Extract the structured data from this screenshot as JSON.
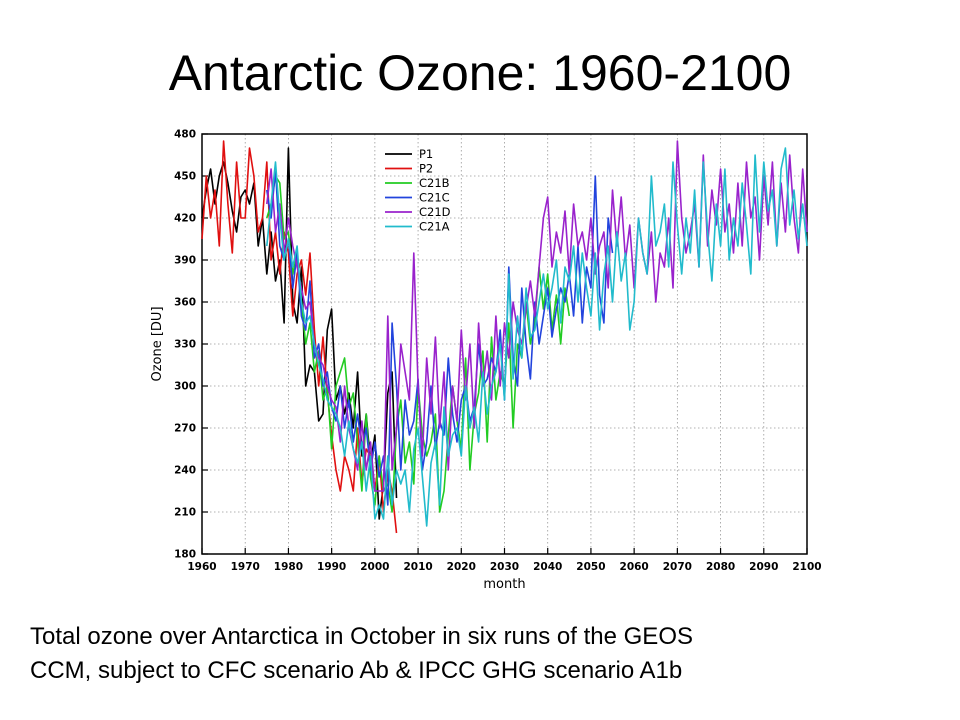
{
  "slide": {
    "title": "Antarctic Ozone: 1960-2100",
    "caption_line1": "Total ozone over Antarctica in October in six runs of the GEOS",
    "caption_line2": "CCM, subject to CFC scenario Ab & IPCC GHG scenario A1b"
  },
  "chart_data": {
    "type": "line",
    "title": "",
    "xlabel": "month",
    "ylabel": "Ozone [DU]",
    "xlim": [
      1960,
      2100
    ],
    "ylim": [
      180,
      480
    ],
    "xticks": [
      1960,
      1970,
      1980,
      1990,
      2000,
      2010,
      2020,
      2030,
      2040,
      2050,
      2060,
      2070,
      2080,
      2090,
      2100
    ],
    "yticks": [
      180,
      210,
      240,
      270,
      300,
      330,
      360,
      390,
      420,
      450,
      480
    ],
    "grid": true,
    "legend_position": "top-center",
    "series": [
      {
        "name": "P1",
        "color": "#000000",
        "x": [
          1960,
          1961,
          1962,
          1963,
          1964,
          1965,
          1966,
          1967,
          1968,
          1969,
          1970,
          1971,
          1972,
          1973,
          1974,
          1975,
          1976,
          1977,
          1978,
          1979,
          1980,
          1981,
          1982,
          1983,
          1984,
          1985,
          1986,
          1987,
          1988,
          1989,
          1990,
          1991,
          1992,
          1993,
          1994,
          1995,
          1996,
          1997,
          1998,
          1999,
          2000,
          2001,
          2002,
          2003,
          2004,
          2005
        ],
        "y": [
          420,
          440,
          455,
          430,
          450,
          460,
          445,
          425,
          410,
          435,
          440,
          430,
          445,
          400,
          420,
          380,
          410,
          375,
          390,
          345,
          470,
          360,
          345,
          385,
          300,
          315,
          310,
          275,
          280,
          340,
          355,
          290,
          300,
          280,
          295,
          270,
          310,
          250,
          280,
          245,
          265,
          205,
          230,
          295,
          310,
          220
        ]
      },
      {
        "name": "P2",
        "color": "#e01010",
        "x": [
          1960,
          1961,
          1962,
          1963,
          1964,
          1965,
          1966,
          1967,
          1968,
          1969,
          1970,
          1971,
          1972,
          1973,
          1974,
          1975,
          1976,
          1977,
          1978,
          1979,
          1980,
          1981,
          1982,
          1983,
          1984,
          1985,
          1986,
          1987,
          1988,
          1989,
          1990,
          1991,
          1992,
          1993,
          1994,
          1995,
          1996,
          1997,
          1998,
          1999,
          2000,
          2001,
          2002,
          2003,
          2004,
          2005
        ],
        "y": [
          405,
          450,
          420,
          440,
          400,
          475,
          430,
          395,
          460,
          420,
          420,
          470,
          450,
          410,
          420,
          460,
          390,
          410,
          380,
          410,
          395,
          350,
          380,
          390,
          365,
          395,
          340,
          300,
          335,
          295,
          265,
          240,
          225,
          250,
          240,
          225,
          270,
          230,
          255,
          250,
          225,
          250,
          210,
          240,
          225,
          195
        ]
      },
      {
        "name": "C21B",
        "color": "#22cc22",
        "x": [
          1975,
          1976,
          1977,
          1978,
          1979,
          1980,
          1981,
          1982,
          1983,
          1984,
          1985,
          1986,
          1987,
          1988,
          1989,
          1990,
          1991,
          1992,
          1993,
          1994,
          1995,
          1996,
          1997,
          1998,
          1999,
          2000,
          2001,
          2002,
          2003,
          2004,
          2005,
          2006,
          2007,
          2008,
          2009,
          2010,
          2011,
          2012,
          2013,
          2014,
          2015,
          2016,
          2017,
          2018,
          2019,
          2020,
          2021,
          2022,
          2023,
          2024,
          2025,
          2026,
          2027,
          2028,
          2029,
          2030,
          2031,
          2032,
          2033,
          2034,
          2035,
          2036,
          2037,
          2038,
          2039,
          2040,
          2041,
          2042,
          2043,
          2044,
          2045
        ],
        "y": [
          420,
          430,
          450,
          445,
          405,
          410,
          380,
          395,
          360,
          330,
          345,
          310,
          325,
          290,
          300,
          255,
          300,
          310,
          320,
          285,
          295,
          260,
          225,
          280,
          235,
          215,
          250,
          225,
          230,
          210,
          270,
          290,
          245,
          260,
          230,
          300,
          265,
          250,
          260,
          280,
          210,
          225,
          265,
          300,
          275,
          255,
          320,
          240,
          280,
          295,
          325,
          260,
          335,
          290,
          310,
          300,
          345,
          270,
          330,
          320,
          360,
          330,
          345,
          385,
          355,
          380,
          340,
          365,
          330,
          370,
          350
        ]
      },
      {
        "name": "C21C",
        "color": "#2244dd",
        "x": [
          1975,
          1976,
          1977,
          1978,
          1979,
          1980,
          1981,
          1982,
          1983,
          1984,
          1985,
          1986,
          1987,
          1988,
          1989,
          1990,
          1991,
          1992,
          1993,
          1994,
          1995,
          1996,
          1997,
          1998,
          1999,
          2000,
          2001,
          2002,
          2003,
          2004,
          2005,
          2006,
          2007,
          2008,
          2009,
          2010,
          2011,
          2012,
          2013,
          2014,
          2015,
          2016,
          2017,
          2018,
          2019,
          2020,
          2021,
          2022,
          2023,
          2024,
          2025,
          2026,
          2027,
          2028,
          2029,
          2030,
          2031,
          2032,
          2033,
          2034,
          2035,
          2036,
          2037,
          2038,
          2039,
          2040,
          2041,
          2042,
          2043,
          2044,
          2045,
          2046,
          2047,
          2048,
          2049,
          2050,
          2051,
          2052,
          2053,
          2054,
          2055
        ],
        "y": [
          440,
          420,
          455,
          400,
          390,
          405,
          370,
          395,
          350,
          340,
          375,
          320,
          330,
          300,
          310,
          285,
          275,
          300,
          270,
          290,
          260,
          280,
          255,
          270,
          240,
          260,
          235,
          250,
          215,
          345,
          300,
          240,
          290,
          265,
          275,
          305,
          240,
          260,
          300,
          255,
          275,
          265,
          320,
          280,
          260,
          290,
          300,
          275,
          285,
          330,
          300,
          305,
          320,
          310,
          340,
          290,
          385,
          320,
          300,
          370,
          330,
          305,
          360,
          330,
          350,
          370,
          335,
          355,
          370,
          360,
          380,
          350,
          400,
          345,
          385,
          370,
          450,
          365,
          345,
          420,
          395
        ]
      },
      {
        "name": "C21D",
        "color": "#9922cc",
        "x": [
          1975,
          1976,
          1977,
          1978,
          1979,
          1980,
          1981,
          1982,
          1983,
          1984,
          1985,
          1986,
          1987,
          1988,
          1989,
          1990,
          1991,
          1992,
          1993,
          1994,
          1995,
          1996,
          1997,
          1998,
          1999,
          2000,
          2001,
          2002,
          2003,
          2004,
          2005,
          2006,
          2007,
          2008,
          2009,
          2010,
          2011,
          2012,
          2013,
          2014,
          2015,
          2016,
          2017,
          2018,
          2019,
          2020,
          2021,
          2022,
          2023,
          2024,
          2025,
          2026,
          2027,
          2028,
          2029,
          2030,
          2031,
          2032,
          2033,
          2034,
          2035,
          2036,
          2037,
          2038,
          2039,
          2040,
          2041,
          2042,
          2043,
          2044,
          2045,
          2046,
          2047,
          2048,
          2049,
          2050,
          2051,
          2052,
          2053,
          2054,
          2055,
          2056,
          2057,
          2058,
          2059,
          2060,
          2061,
          2062,
          2063,
          2064,
          2065,
          2066,
          2067,
          2068,
          2069,
          2070,
          2071,
          2072,
          2073,
          2074,
          2075,
          2076,
          2077,
          2078,
          2079,
          2080,
          2081,
          2082,
          2083,
          2084,
          2085,
          2086,
          2087,
          2088,
          2089,
          2090,
          2091,
          2092,
          2093,
          2094,
          2095,
          2096,
          2097,
          2098,
          2099,
          2100
        ],
        "y": [
          430,
          455,
          410,
          430,
          395,
          420,
          400,
          385,
          370,
          355,
          360,
          330,
          320,
          315,
          300,
          290,
          285,
          260,
          300,
          270,
          255,
          240,
          275,
          240,
          260,
          225,
          225,
          225,
          350,
          240,
          270,
          330,
          310,
          290,
          395,
          300,
          250,
          320,
          280,
          335,
          270,
          310,
          240,
          300,
          275,
          340,
          290,
          330,
          270,
          345,
          300,
          325,
          290,
          350,
          300,
          345,
          320,
          360,
          340,
          330,
          355,
          375,
          350,
          385,
          420,
          435,
          385,
          410,
          395,
          425,
          380,
          430,
          400,
          410,
          390,
          420,
          380,
          400,
          410,
          370,
          440,
          400,
          435,
          390,
          415,
          370,
          420,
          395,
          380,
          410,
          360,
          395,
          385,
          420,
          370,
          475,
          420,
          395,
          410,
          430,
          385,
          465,
          400,
          440,
          415,
          455,
          410,
          430,
          395,
          445,
          400,
          460,
          420,
          435,
          390,
          450,
          415,
          460,
          400,
          445,
          410,
          465,
          420,
          395,
          455,
          410
        ]
      },
      {
        "name": "C21A",
        "color": "#22bbcc",
        "x": [
          1975,
          1976,
          1977,
          1978,
          1979,
          1980,
          1981,
          1982,
          1983,
          1984,
          1985,
          1986,
          1987,
          1988,
          1989,
          1990,
          1991,
          1992,
          1993,
          1994,
          1995,
          1996,
          1997,
          1998,
          1999,
          2000,
          2001,
          2002,
          2003,
          2004,
          2005,
          2006,
          2007,
          2008,
          2009,
          2010,
          2011,
          2012,
          2013,
          2014,
          2015,
          2016,
          2017,
          2018,
          2019,
          2020,
          2021,
          2022,
          2023,
          2024,
          2025,
          2026,
          2027,
          2028,
          2029,
          2030,
          2031,
          2032,
          2033,
          2034,
          2035,
          2036,
          2037,
          2038,
          2039,
          2040,
          2041,
          2042,
          2043,
          2044,
          2045,
          2046,
          2047,
          2048,
          2049,
          2050,
          2051,
          2052,
          2053,
          2054,
          2055,
          2056,
          2057,
          2058,
          2059,
          2060,
          2061,
          2062,
          2063,
          2064,
          2065,
          2066,
          2067,
          2068,
          2069,
          2070,
          2071,
          2072,
          2073,
          2074,
          2075,
          2076,
          2077,
          2078,
          2079,
          2080,
          2081,
          2082,
          2083,
          2084,
          2085,
          2086,
          2087,
          2088,
          2089,
          2090,
          2091,
          2092,
          2093,
          2094,
          2095,
          2096,
          2097,
          2098,
          2099,
          2100
        ],
        "y": [
          400,
          430,
          460,
          420,
          390,
          405,
          385,
          400,
          360,
          345,
          350,
          330,
          315,
          305,
          290,
          285,
          280,
          270,
          250,
          275,
          255,
          245,
          260,
          225,
          250,
          205,
          215,
          205,
          250,
          215,
          240,
          230,
          240,
          210,
          255,
          270,
          235,
          200,
          245,
          260,
          215,
          285,
          250,
          265,
          270,
          250,
          300,
          270,
          285,
          260,
          310,
          280,
          300,
          310,
          330,
          290,
          380,
          305,
          350,
          320,
          370,
          335,
          340,
          360,
          380,
          355,
          370,
          390,
          345,
          385,
          375,
          400,
          360,
          395,
          370,
          350,
          395,
          340,
          380,
          400,
          360,
          410,
          375,
          395,
          340,
          360,
          420,
          395,
          380,
          450,
          400,
          410,
          430,
          385,
          460,
          415,
          380,
          420,
          395,
          440,
          385,
          460,
          410,
          375,
          430,
          400,
          455,
          390,
          420,
          400,
          445,
          415,
          380,
          465,
          410,
          460,
          425,
          440,
          400,
          455,
          470,
          415,
          440,
          405,
          430,
          400
        ]
      }
    ]
  }
}
